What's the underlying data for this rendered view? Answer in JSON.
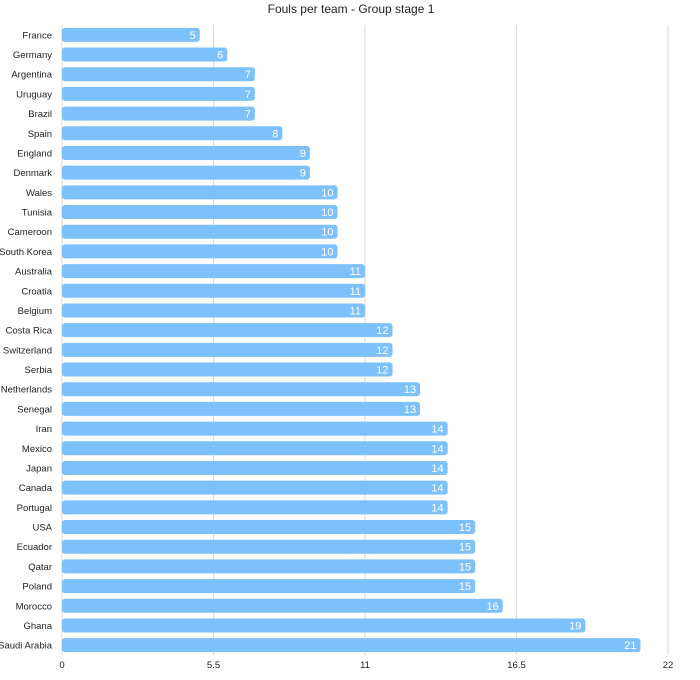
{
  "chart_data": {
    "type": "bar",
    "orientation": "horizontal",
    "title": "Fouls per team - Group stage 1",
    "xlabel": "",
    "ylabel": "",
    "xlim": [
      0,
      22
    ],
    "x_ticks": [
      "0",
      "5.5",
      "11",
      "16.5",
      "22"
    ],
    "x_tick_values": [
      0,
      5.5,
      11,
      16.5,
      22
    ],
    "grid": true,
    "legend": "none",
    "bar_color": "#7cc1fb",
    "gridline_color": "#d9d9d9",
    "categories": [
      "France",
      "Germany",
      "Argentina",
      "Uruguay",
      "Brazil",
      "Spain",
      "England",
      "Denmark",
      "Wales",
      "Tunisia",
      "Cameroon",
      "South Korea",
      "Australia",
      "Croatia",
      "Belgium",
      "Costa Rica",
      "Switzerland",
      "Serbia",
      "Netherlands",
      "Senegal",
      "Iran",
      "Mexico",
      "Japan",
      "Canada",
      "Portugal",
      "USA",
      "Ecuador",
      "Qatar",
      "Poland",
      "Morocco",
      "Ghana",
      "Saudi Arabia"
    ],
    "values": [
      5,
      6,
      7,
      7,
      7,
      8,
      9,
      9,
      10,
      10,
      10,
      10,
      11,
      11,
      11,
      12,
      12,
      12,
      13,
      13,
      14,
      14,
      14,
      14,
      14,
      15,
      15,
      15,
      15,
      16,
      19,
      21
    ]
  }
}
